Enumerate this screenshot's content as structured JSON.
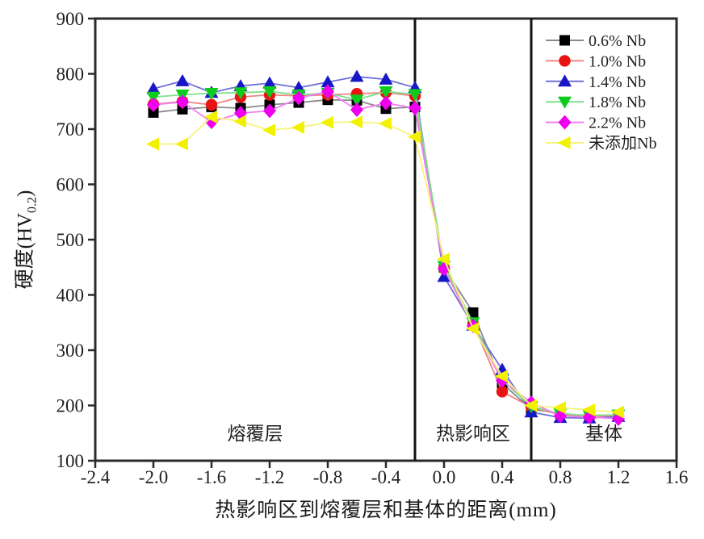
{
  "chart_data": {
    "type": "line",
    "title": "",
    "xlabel": "热影响区到熔覆层和基体的距离(mm)",
    "ylabel": {
      "main": "硬度(HV",
      "sub": "0.2",
      "end": ")"
    },
    "xlim": [
      -2.4,
      1.6
    ],
    "ylim": [
      100,
      900
    ],
    "x_ticks": [
      -2.4,
      -2.0,
      -1.6,
      -1.2,
      -0.8,
      -0.4,
      0.0,
      0.4,
      0.8,
      1.2,
      1.6
    ],
    "y_ticks": [
      100,
      200,
      300,
      400,
      500,
      600,
      700,
      800,
      900
    ],
    "grid": false,
    "legend_position": "top-right",
    "x": [
      -2.0,
      -1.8,
      -1.6,
      -1.4,
      -1.2,
      -1.0,
      -0.8,
      -0.6,
      -0.4,
      -0.2,
      0.0,
      0.2,
      0.4,
      0.6,
      0.8,
      1.0,
      1.2
    ],
    "series": [
      {
        "name": "0.6% Nb",
        "marker": "square",
        "color": "#000000",
        "line_color": "#8a8a8a",
        "values": [
          730,
          736,
          740,
          738,
          744,
          748,
          753,
          752,
          737,
          740,
          450,
          368,
          240,
          193,
          186,
          180,
          182
        ]
      },
      {
        "name": "1.0% Nb",
        "marker": "circle",
        "color": "#e81414",
        "line_color": "#f08585",
        "values": [
          745,
          750,
          744,
          758,
          762,
          760,
          762,
          764,
          766,
          760,
          448,
          348,
          225,
          197,
          183,
          180,
          181
        ]
      },
      {
        "name": "1.4% Nb",
        "marker": "triangle-up",
        "color": "#1717c8",
        "line_color": "#7070d8",
        "values": [
          773,
          787,
          766,
          778,
          783,
          775,
          785,
          795,
          790,
          775,
          433,
          345,
          265,
          188,
          178,
          177,
          180
        ]
      },
      {
        "name": "1.8% Nb",
        "marker": "triangle-down",
        "color": "#0ecc1e",
        "line_color": "#7fe08a",
        "values": [
          758,
          762,
          765,
          766,
          768,
          762,
          765,
          753,
          768,
          763,
          452,
          350,
          246,
          198,
          185,
          182,
          183
        ]
      },
      {
        "name": "2.2% Nb",
        "marker": "diamond",
        "color": "#ee00ee",
        "line_color": "#f27df2",
        "values": [
          744,
          749,
          713,
          729,
          733,
          756,
          768,
          735,
          747,
          738,
          447,
          344,
          245,
          205,
          181,
          179,
          176
        ]
      },
      {
        "name": "未添加Nb",
        "marker": "triangle-left",
        "color": "#f2f200",
        "line_color": "#f5f57a",
        "values": [
          673,
          673,
          722,
          714,
          698,
          703,
          712,
          713,
          710,
          686,
          465,
          339,
          253,
          200,
          196,
          192,
          188
        ]
      }
    ],
    "boundary_lines_x": [
      -0.2,
      0.6
    ],
    "region_labels": [
      {
        "label": "熔覆层",
        "x": -1.3
      },
      {
        "label": "热影响区",
        "x": 0.2
      },
      {
        "label": "基体",
        "x": 1.1
      }
    ],
    "frame_color": "#2a2a2a",
    "tick_label_color": "#1f1f1f"
  }
}
